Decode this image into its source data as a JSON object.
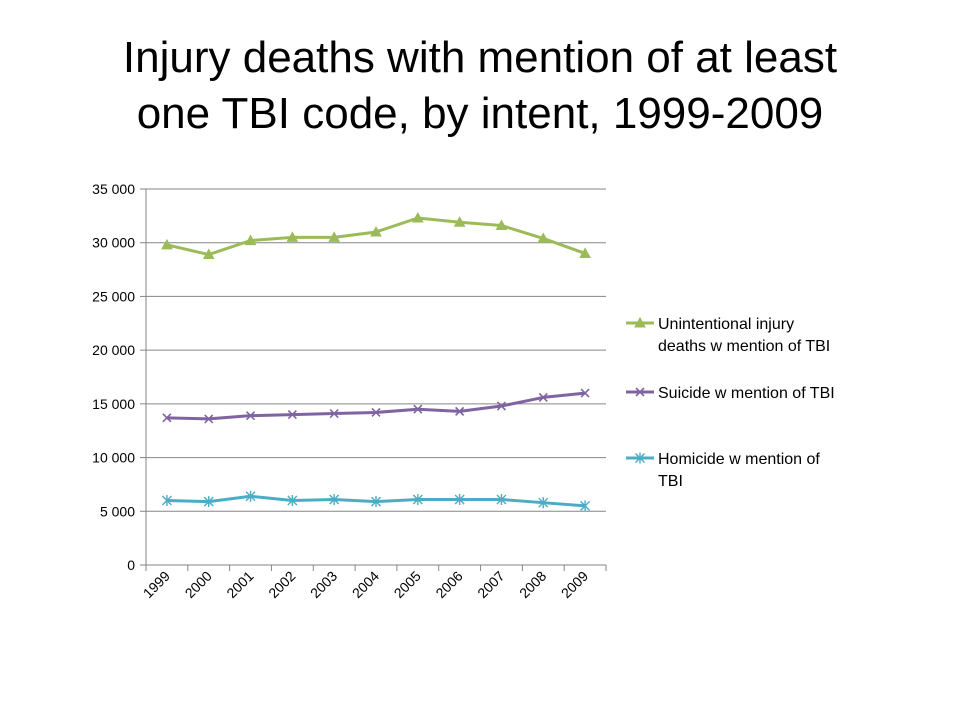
{
  "slide": {
    "title_line1": "Injury deaths with mention of at least",
    "title_line2": "one TBI code, by intent, 1999-2009"
  },
  "chart_data": {
    "type": "line",
    "title": "",
    "xlabel": "",
    "ylabel": "",
    "x": [
      "1999",
      "2000",
      "2001",
      "2002",
      "2003",
      "2004",
      "2005",
      "2006",
      "2007",
      "2008",
      "2009"
    ],
    "ylim": [
      0,
      35000
    ],
    "yticks": [
      0,
      5000,
      10000,
      15000,
      20000,
      25000,
      30000,
      35000
    ],
    "ytick_labels": [
      "0",
      "5 000",
      "10 000",
      "15 000",
      "20 000",
      "25 000",
      "30 000",
      "35 000"
    ],
    "grid": true,
    "legend_position": "right",
    "series": [
      {
        "name_lines": [
          "Unintentional injury",
          "deaths w mention of TBI"
        ],
        "color": "#9BBB59",
        "marker": "triangle",
        "values": [
          29800,
          28900,
          30200,
          30500,
          30500,
          31000,
          32300,
          31900,
          31600,
          30400,
          29000
        ]
      },
      {
        "name_lines": [
          "Suicide w mention of TBI"
        ],
        "color": "#8064A2",
        "marker": "x",
        "values": [
          13700,
          13600,
          13900,
          14000,
          14100,
          14200,
          14500,
          14300,
          14800,
          15600,
          16000
        ]
      },
      {
        "name_lines": [
          "Homicide w mention of",
          "TBI"
        ],
        "color": "#4BACC6",
        "marker": "star",
        "values": [
          6000,
          5900,
          6400,
          6000,
          6100,
          5900,
          6100,
          6100,
          6100,
          5800,
          5500
        ]
      }
    ]
  }
}
